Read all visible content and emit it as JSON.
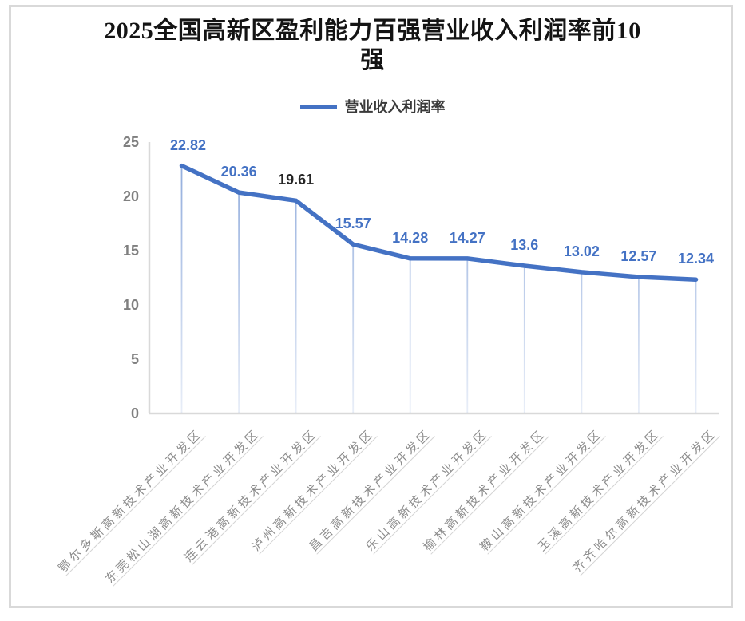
{
  "page": {
    "background": "#ffffff",
    "frame_border_color": "#d9d9d9"
  },
  "title": "2025全国高新区盈利能力百强营业收入利润率前10强",
  "title_lines": [
    "2025全国高新区盈利能力百强营业收入利润率前10",
    "强"
  ],
  "legend": {
    "label": "营业收入利润率",
    "marker_color": "#4472C4",
    "position": "top"
  },
  "chart_data": {
    "type": "line",
    "title": "2025全国高新区盈利能力百强营业收入利润率前10强",
    "categories": [
      "鄂尔多斯高新技术产业开发区",
      "东莞松山湖高新技术产业开发区",
      "连云港高新技术产业开发区",
      "泸州高新技术产业开发区",
      "昌吉高新技术产业开发区",
      "乐山高新技术产业开发区",
      "榆林高新技术产业开发区",
      "鞍山高新技术产业开发区",
      "玉溪高新技术产业开发区",
      "齐齐哈尔高新技术产业开发区"
    ],
    "series": [
      {
        "name": "营业收入利润率",
        "values": [
          22.82,
          20.36,
          19.61,
          15.57,
          14.28,
          14.27,
          13.6,
          13.02,
          12.57,
          12.34
        ]
      }
    ],
    "xlabel": "",
    "ylabel": "",
    "ylim": [
      0,
      25
    ],
    "yticks": [
      0,
      5,
      10,
      15,
      20,
      25
    ],
    "grid": false,
    "legend_position": "top",
    "line_color": "#4472C4",
    "drop_line_color": "#4472C4",
    "value_label_colors": [
      "#4472C4",
      "#4472C4",
      "#262626",
      "#4472C4",
      "#4472C4",
      "#4472C4",
      "#4472C4",
      "#4472C4",
      "#4472C4",
      "#4472C4"
    ],
    "axis_color": "#d9d9d9",
    "ytick_label_color": "#7f7f7f",
    "category_label_color": "#8c8c8c"
  }
}
